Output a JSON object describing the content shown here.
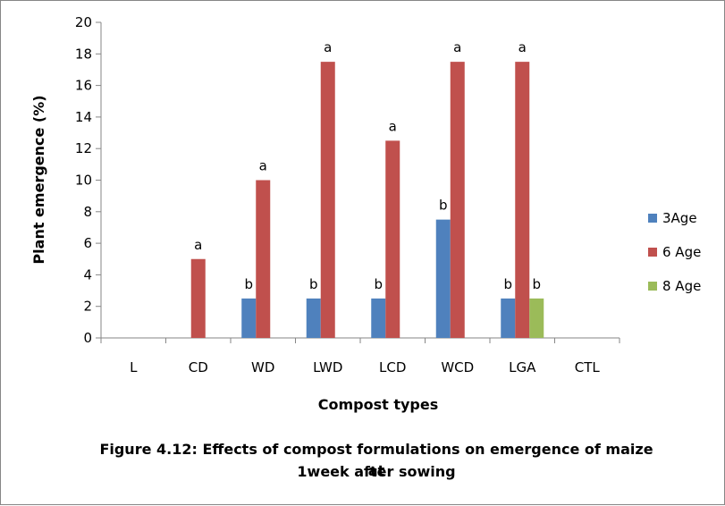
{
  "chart_data": {
    "type": "bar",
    "categories": [
      "L",
      "CD",
      "WD",
      "LWD",
      "LCD",
      "WCD",
      "LGA",
      "CTL"
    ],
    "series": [
      {
        "name": "3Age",
        "color": "#4F81BD",
        "values": [
          0,
          0,
          2.5,
          2.5,
          2.5,
          7.5,
          2.5,
          0
        ],
        "labels": [
          "",
          "",
          "b",
          "b",
          "b",
          "b",
          "b",
          ""
        ]
      },
      {
        "name": "6 Age",
        "color": "#C0504D",
        "values": [
          0,
          5,
          10,
          17.5,
          12.5,
          17.5,
          17.5,
          0
        ],
        "labels": [
          "",
          "a",
          "a",
          "a",
          "a",
          "a",
          "a",
          ""
        ]
      },
      {
        "name": "8 Age",
        "color": "#9BBB59",
        "values": [
          0,
          0,
          0,
          0,
          0,
          0,
          2.5,
          0
        ],
        "labels": [
          "",
          "",
          "",
          "",
          "",
          "",
          "b",
          ""
        ]
      }
    ],
    "xlabel": "Compost types",
    "ylabel": "Plant emergence (%)",
    "ylim": [
      0,
      20
    ],
    "yticks": [
      0,
      2,
      4,
      6,
      8,
      10,
      12,
      14,
      16,
      18,
      20
    ],
    "grid": false,
    "legend": "right"
  },
  "caption": {
    "line1": "Figure 4.12: Effects of compost formulations on emergence of maize at",
    "line2": "1week after sowing"
  }
}
